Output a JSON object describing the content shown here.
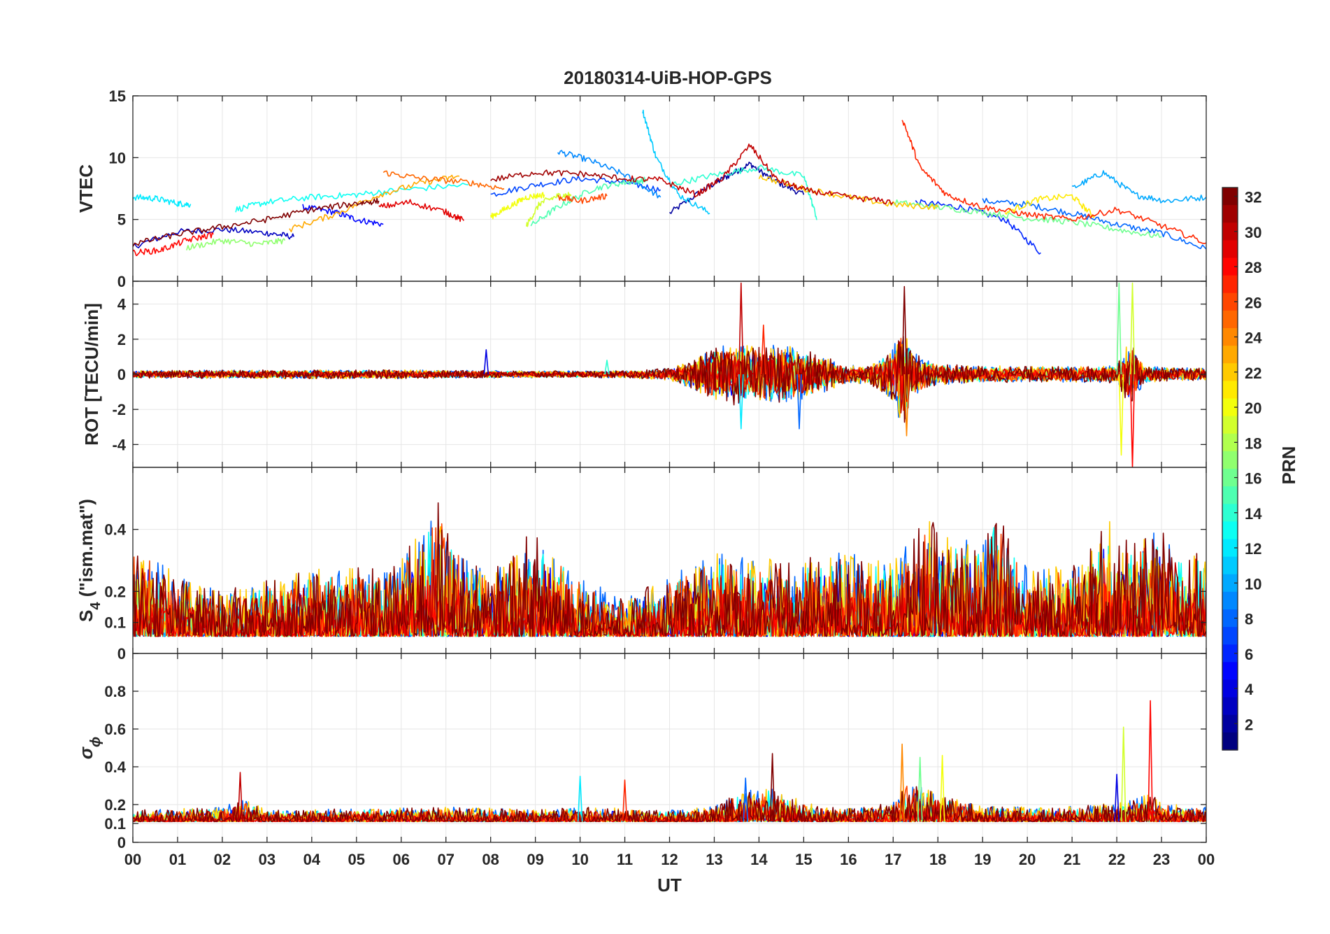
{
  "chart_data": {
    "type": "line",
    "title": "20180314-UiB-HOP-GPS",
    "xlabel": "UT",
    "x_ticks": [
      "00",
      "01",
      "02",
      "03",
      "04",
      "05",
      "06",
      "07",
      "08",
      "09",
      "10",
      "11",
      "12",
      "13",
      "14",
      "15",
      "16",
      "17",
      "18",
      "19",
      "20",
      "21",
      "22",
      "23",
      "00"
    ],
    "xlim": [
      0,
      24
    ],
    "grid": true,
    "colorbar": {
      "label": "PRN",
      "range": [
        1,
        32
      ],
      "ticks": [
        2,
        4,
        6,
        8,
        10,
        12,
        14,
        16,
        18,
        20,
        22,
        24,
        26,
        28,
        30,
        32
      ],
      "tick_labels": [
        "2",
        "4",
        "6",
        "8",
        "10",
        "12",
        "14",
        "16",
        "18",
        "20",
        "22",
        "24",
        "26",
        "28",
        "30",
        "32"
      ],
      "colormap": "jet",
      "colors": [
        "#00008f",
        "#0000ff",
        "#00ffff",
        "#ffff00",
        "#ff0000",
        "#800000"
      ]
    },
    "panels": [
      {
        "id": "vtec",
        "ylabel": "VTEC",
        "ylim": [
          0,
          15
        ],
        "y_ticks": [
          0,
          5,
          10,
          15
        ],
        "y_tick_labels": [
          "0",
          "5",
          "10",
          "15"
        ],
        "series": [
          {
            "prn": 2,
            "x": [
              12.0,
              12.8,
              13.3,
              13.8,
              14.3,
              15.0
            ],
            "y": [
              5.5,
              7.5,
              8.5,
              9.5,
              8.2,
              7.0
            ]
          },
          {
            "prn": 3,
            "x": [
              0.0,
              1.0,
              2.0,
              3.0,
              3.6
            ],
            "y": [
              2.8,
              4.0,
              4.2,
              3.9,
              3.6
            ]
          },
          {
            "prn": 5,
            "x": [
              3.8,
              4.5,
              5.0,
              5.6
            ],
            "y": [
              6.0,
              5.6,
              5.0,
              4.6
            ]
          },
          {
            "prn": 6,
            "x": [
              17.5,
              18.5,
              19.5,
              20.3
            ],
            "y": [
              6.4,
              6.0,
              5.0,
              2.3
            ]
          },
          {
            "prn": 7,
            "x": [
              8.0,
              9.0,
              10.0,
              11.0,
              11.8
            ],
            "y": [
              7.0,
              7.8,
              8.3,
              8.0,
              7.4
            ]
          },
          {
            "prn": 8,
            "x": [
              19.0,
              20.0,
              21.0,
              22.0,
              23.0,
              24.0
            ],
            "y": [
              6.5,
              6.2,
              5.5,
              4.6,
              3.9,
              2.6
            ]
          },
          {
            "prn": 9,
            "x": [
              9.5,
              10.2,
              11.0,
              11.8
            ],
            "y": [
              10.5,
              9.8,
              8.6,
              6.8
            ]
          },
          {
            "prn": 10,
            "x": [
              21.0,
              21.7,
              22.4,
              23.1,
              24.0
            ],
            "y": [
              7.5,
              8.8,
              7.0,
              6.5,
              6.8
            ]
          },
          {
            "prn": 11,
            "x": [
              11.4,
              11.7,
              12.2,
              12.9
            ],
            "y": [
              13.8,
              10.0,
              7.0,
              5.5
            ]
          },
          {
            "prn": 12,
            "x": [
              0.0,
              0.5,
              1.0,
              1.3
            ],
            "y": [
              6.8,
              6.7,
              6.3,
              6.2
            ]
          },
          {
            "prn": 13,
            "x": [
              2.3,
              3.0,
              4.0,
              5.0,
              6.0,
              7.5
            ],
            "y": [
              5.8,
              6.4,
              6.8,
              7.0,
              7.4,
              7.8
            ]
          },
          {
            "prn": 14,
            "x": [
              12.0,
              13.0,
              14.0,
              15.0,
              15.3
            ],
            "y": [
              7.8,
              8.6,
              9.2,
              8.5,
              5.0
            ]
          },
          {
            "prn": 15,
            "x": [
              8.9,
              9.5,
              10.3,
              11.0,
              11.5
            ],
            "y": [
              4.5,
              6.0,
              7.5,
              8.0,
              8.2
            ]
          },
          {
            "prn": 16,
            "x": [
              17.0,
              18.0,
              19.0,
              20.0,
              21.0,
              22.0,
              23.0
            ],
            "y": [
              6.4,
              6.0,
              5.6,
              5.1,
              4.8,
              4.2,
              3.6
            ]
          },
          {
            "prn": 17,
            "x": [
              1.2,
              2.0,
              2.8,
              3.4
            ],
            "y": [
              2.7,
              3.3,
              3.0,
              3.3
            ]
          },
          {
            "prn": 19,
            "x": [
              8.8,
              9.1,
              9.5,
              9.8
            ],
            "y": [
              4.5,
              6.3,
              6.9,
              7.0
            ]
          },
          {
            "prn": 20,
            "x": [
              8.0,
              8.4,
              8.8,
              9.2
            ],
            "y": [
              5.2,
              6.0,
              6.8,
              7.0
            ]
          },
          {
            "prn": 21,
            "x": [
              19.5,
              20.2,
              21.0,
              21.5
            ],
            "y": [
              5.5,
              6.6,
              6.9,
              5.2
            ]
          },
          {
            "prn": 22,
            "x": [
              14.0,
              15.0,
              16.0,
              17.0,
              18.0
            ],
            "y": [
              8.5,
              7.5,
              6.8,
              6.2,
              6.0
            ]
          },
          {
            "prn": 23,
            "x": [
              3.5,
              4.5,
              5.5,
              6.5,
              7.3
            ],
            "y": [
              4.2,
              5.4,
              7.0,
              8.0,
              8.5
            ]
          },
          {
            "prn": 25,
            "x": [
              5.6,
              6.5,
              7.5,
              8.3
            ],
            "y": [
              8.8,
              8.3,
              8.0,
              7.5
            ]
          },
          {
            "prn": 26,
            "x": [
              9.5,
              10.0,
              10.6
            ],
            "y": [
              6.8,
              6.5,
              6.9
            ]
          },
          {
            "prn": 27,
            "x": [
              17.2,
              17.6,
              18.2,
              19.0,
              20.0,
              21.0,
              22.0,
              23.0,
              24.0
            ],
            "y": [
              13.2,
              9.2,
              7.0,
              6.0,
              5.4,
              5.0,
              5.8,
              4.5,
              3.1
            ]
          },
          {
            "prn": 28,
            "x": [
              0.0,
              0.6,
              1.2,
              1.8
            ],
            "y": [
              2.3,
              2.5,
              3.3,
              3.8
            ]
          },
          {
            "prn": 29,
            "x": [
              5.5,
              6.2,
              7.0,
              7.4
            ],
            "y": [
              6.0,
              6.4,
              5.6,
              4.9
            ]
          },
          {
            "prn": 30,
            "x": [
              11.0,
              11.8,
              12.6,
              13.2,
              13.8,
              14.4,
              15.0,
              16.0,
              17.0
            ],
            "y": [
              8.3,
              8.2,
              7.0,
              8.4,
              11.0,
              8.2,
              7.4,
              6.8,
              6.4
            ]
          },
          {
            "prn": 31,
            "x": [
              8.0,
              9.0,
              10.0,
              11.0
            ],
            "y": [
              8.2,
              8.8,
              8.7,
              8.3
            ]
          },
          {
            "prn": 32,
            "x": [
              0.0,
              1.0,
              2.0,
              3.0,
              4.0,
              5.0,
              5.5
            ],
            "y": [
              3.0,
              3.8,
              4.4,
              5.0,
              5.8,
              6.3,
              6.5
            ]
          }
        ]
      },
      {
        "id": "rot",
        "ylabel": "ROT [TECU/min]",
        "ylim": [
          -5.3,
          5.3
        ],
        "y_ticks": [
          -4,
          -2,
          0,
          2,
          4
        ],
        "y_tick_labels": [
          "-4",
          "-2",
          "0",
          "2",
          "4"
        ],
        "activity_profile": {
          "x": [
            0,
            3,
            6,
            9,
            11,
            12,
            12.5,
            13,
            13.5,
            14,
            14.5,
            15,
            15.5,
            16,
            16.5,
            17,
            17.2,
            17.4,
            17.6,
            18,
            19,
            20,
            21,
            22,
            22.3,
            22.6,
            23,
            24
          ],
          "amplitude": [
            0.22,
            0.25,
            0.25,
            0.2,
            0.2,
            0.35,
            0.8,
            1.5,
            1.8,
            1.6,
            1.7,
            1.4,
            1.0,
            0.5,
            0.6,
            1.5,
            3.4,
            1.4,
            1.0,
            0.6,
            0.5,
            0.45,
            0.45,
            0.5,
            2.0,
            0.5,
            0.4,
            0.35
          ]
        },
        "spikes": [
          {
            "x": 13.6,
            "y": 5.2
          },
          {
            "x": 13.6,
            "y": -3.1
          },
          {
            "x": 14.1,
            "y": 2.8
          },
          {
            "x": 14.9,
            "y": -3.1
          },
          {
            "x": 17.25,
            "y": 5.0
          },
          {
            "x": 17.3,
            "y": -3.5
          },
          {
            "x": 22.05,
            "y": 5.2
          },
          {
            "x": 22.1,
            "y": -4.6
          },
          {
            "x": 22.35,
            "y": 5.2
          },
          {
            "x": 22.35,
            "y": -5.3
          },
          {
            "x": 7.9,
            "y": 1.4
          },
          {
            "x": 10.6,
            "y": 0.8
          }
        ]
      },
      {
        "id": "s4",
        "ylabel_main": "S",
        "ylabel_sub": "4",
        "ylabel_rest": " (\"ism.mat\")",
        "ylim": [
          0,
          0.6
        ],
        "y_ticks": [
          0,
          0.1,
          0.2,
          0.4
        ],
        "y_tick_labels": [
          "0",
          "0.1",
          "0.2",
          "0.4"
        ],
        "baseline": 0.055,
        "activity_profile": {
          "x": [
            0,
            0.5,
            1,
            2,
            3,
            4,
            5,
            6,
            6.8,
            7.5,
            8,
            8.5,
            9,
            10,
            11,
            12,
            13,
            14,
            15,
            16,
            17,
            17.7,
            18,
            19,
            19.3,
            20,
            21,
            21.8,
            22,
            23,
            23.5,
            24
          ],
          "amplitude": [
            0.3,
            0.28,
            0.2,
            0.15,
            0.18,
            0.22,
            0.22,
            0.25,
            0.45,
            0.25,
            0.2,
            0.3,
            0.35,
            0.2,
            0.12,
            0.2,
            0.28,
            0.25,
            0.25,
            0.28,
            0.25,
            0.4,
            0.35,
            0.3,
            0.42,
            0.22,
            0.25,
            0.4,
            0.3,
            0.35,
            0.3,
            0.28
          ]
        }
      },
      {
        "id": "sigma_phi",
        "ylabel_main": "σ",
        "ylabel_sub": "ϕ",
        "ylim": [
          0,
          1.0
        ],
        "y_ticks": [
          0,
          0.1,
          0.2,
          0.4,
          0.6,
          0.8
        ],
        "y_tick_labels": [
          "0",
          "0.1",
          "0.2",
          "0.4",
          "0.6",
          "0.8"
        ],
        "baseline": 0.11,
        "activity_profile": {
          "x": [
            0,
            2,
            2.5,
            3,
            5,
            6,
            9,
            10,
            12,
            13,
            13.5,
            14.3,
            15,
            16,
            17,
            17.3,
            18,
            19,
            20,
            21,
            22,
            22.8,
            23,
            24
          ],
          "amplitude": [
            0.06,
            0.08,
            0.12,
            0.06,
            0.07,
            0.08,
            0.07,
            0.08,
            0.06,
            0.08,
            0.15,
            0.2,
            0.1,
            0.07,
            0.1,
            0.22,
            0.15,
            0.08,
            0.08,
            0.08,
            0.1,
            0.15,
            0.1,
            0.08
          ]
        },
        "spikes": [
          {
            "x": 2.4,
            "y": 0.37
          },
          {
            "x": 10.0,
            "y": 0.35
          },
          {
            "x": 11.0,
            "y": 0.33
          },
          {
            "x": 13.7,
            "y": 0.34
          },
          {
            "x": 14.3,
            "y": 0.47
          },
          {
            "x": 17.2,
            "y": 0.52
          },
          {
            "x": 17.6,
            "y": 0.45
          },
          {
            "x": 18.1,
            "y": 0.46
          },
          {
            "x": 22.15,
            "y": 0.61
          },
          {
            "x": 22.75,
            "y": 0.75
          },
          {
            "x": 22.0,
            "y": 0.36
          }
        ]
      }
    ]
  }
}
